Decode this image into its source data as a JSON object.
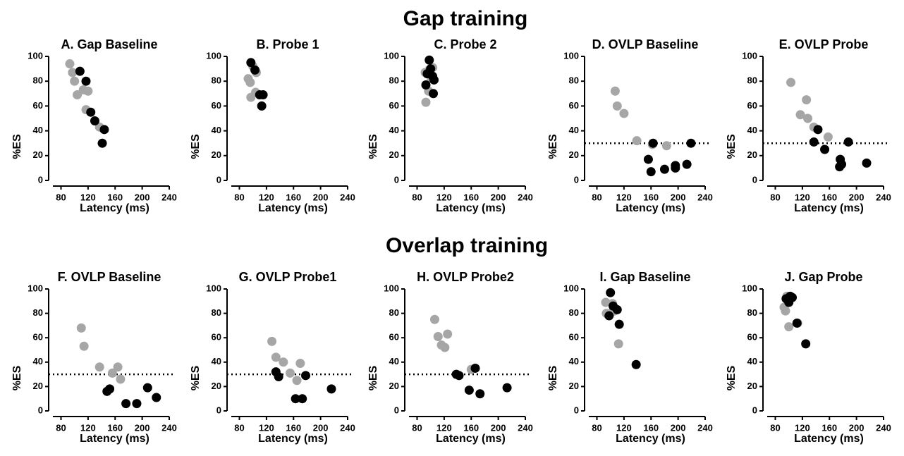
{
  "section_titles": [
    "Gap training",
    "Overlap training"
  ],
  "chart_data": [
    {
      "type": "scatter",
      "title": "A. Gap Baseline",
      "xlabel": "Latency (ms)",
      "ylabel": "%ES",
      "xlim": [
        68,
        240
      ],
      "xticks": [
        80,
        120,
        160,
        200,
        240
      ],
      "ylim": [
        0,
        100
      ],
      "yticks": [
        0,
        20,
        40,
        60,
        80,
        100
      ],
      "series": [
        {
          "color": "#a6a6a6",
          "x": [
            93,
            97,
            100,
            104,
            113,
            117,
            120,
            137
          ],
          "values": [
            94,
            87,
            80,
            69,
            73,
            57,
            72,
            43
          ]
        },
        {
          "color": "#000000",
          "x": [
            108,
            117,
            124,
            130,
            144,
            141
          ],
          "values": [
            88,
            80,
            55,
            48,
            41,
            30
          ]
        }
      ]
    },
    {
      "type": "scatter",
      "title": "B. Probe 1",
      "xlabel": "Latency (ms)",
      "ylabel": "%ES",
      "xlim": [
        68,
        240
      ],
      "xticks": [
        80,
        120,
        160,
        200,
        240
      ],
      "ylim": [
        0,
        100
      ],
      "yticks": [
        0,
        20,
        40,
        60,
        80,
        100
      ],
      "series": [
        {
          "color": "#a6a6a6",
          "x": [
            93,
            96,
            97,
            100,
            104,
            105
          ],
          "values": [
            82,
            79,
            67,
            92,
            71,
            87
          ]
        },
        {
          "color": "#000000",
          "x": [
            97,
            103,
            110,
            115,
            113
          ],
          "values": [
            95,
            89,
            69,
            69,
            60
          ]
        }
      ]
    },
    {
      "type": "scatter",
      "title": "C. Probe 2",
      "xlabel": "Latency (ms)",
      "ylabel": "%ES",
      "xlim": [
        68,
        240
      ],
      "xticks": [
        80,
        120,
        160,
        200,
        240
      ],
      "ylim": [
        0,
        100
      ],
      "yticks": [
        0,
        20,
        40,
        60,
        80,
        100
      ],
      "series": [
        {
          "color": "#a6a6a6",
          "x": [
            92,
            93,
            97,
            98,
            101,
            103
          ],
          "values": [
            87,
            63,
            72,
            89,
            82,
            91
          ]
        },
        {
          "color": "#000000",
          "x": [
            93,
            95,
            98,
            100,
            103,
            105,
            104
          ],
          "values": [
            77,
            86,
            97,
            90,
            84,
            81,
            70
          ]
        }
      ]
    },
    {
      "type": "scatter",
      "title": "D. OVLP Baseline",
      "xlabel": "Latency (ms)",
      "ylabel": "%ES",
      "xlim": [
        68,
        240
      ],
      "xticks": [
        80,
        120,
        160,
        200,
        240
      ],
      "ylim": [
        0,
        100
      ],
      "yticks": [
        0,
        20,
        40,
        60,
        80,
        100
      ],
      "threshold": 30,
      "series": [
        {
          "color": "#a6a6a6",
          "x": [
            107,
            110,
            120,
            139,
            162,
            183
          ],
          "values": [
            72,
            60,
            54,
            32,
            29,
            28
          ]
        },
        {
          "color": "#000000",
          "x": [
            156,
            160,
            163,
            180,
            196,
            196,
            213,
            219
          ],
          "values": [
            17,
            7,
            30,
            9,
            12,
            10,
            13,
            30
          ]
        }
      ]
    },
    {
      "type": "scatter",
      "title": "E. OVLP Probe",
      "xlabel": "Latency (ms)",
      "ylabel": "%ES",
      "xlim": [
        68,
        240
      ],
      "xticks": [
        80,
        120,
        160,
        200,
        240
      ],
      "ylim": [
        0,
        100
      ],
      "yticks": [
        0,
        20,
        40,
        60,
        80,
        100
      ],
      "threshold": 30,
      "series": [
        {
          "color": "#a6a6a6",
          "x": [
            103,
            117,
            126,
            128,
            137,
            158
          ],
          "values": [
            79,
            53,
            65,
            50,
            43,
            35
          ]
        },
        {
          "color": "#000000",
          "x": [
            137,
            143,
            153,
            175,
            176,
            178,
            188,
            215
          ],
          "values": [
            31,
            41,
            25,
            11,
            17,
            13,
            31,
            14
          ]
        }
      ]
    },
    {
      "type": "scatter",
      "title": "F. OVLP Baseline",
      "xlabel": "Latency (ms)",
      "ylabel": "%ES",
      "xlim": [
        68,
        240
      ],
      "xticks": [
        80,
        120,
        160,
        200,
        240
      ],
      "ylim": [
        0,
        100
      ],
      "yticks": [
        0,
        20,
        40,
        60,
        80,
        100
      ],
      "threshold": 30,
      "series": [
        {
          "color": "#a6a6a6",
          "x": [
            110,
            114,
            137,
            156,
            164,
            168
          ],
          "values": [
            68,
            53,
            36,
            31,
            36,
            26
          ]
        },
        {
          "color": "#000000",
          "x": [
            148,
            152,
            176,
            192,
            208,
            221
          ],
          "values": [
            16,
            18,
            6,
            6,
            19,
            11
          ]
        }
      ]
    },
    {
      "type": "scatter",
      "title": "G. OVLP Probe1",
      "xlabel": "Latency (ms)",
      "ylabel": "%ES",
      "xlim": [
        68,
        240
      ],
      "xticks": [
        80,
        120,
        160,
        200,
        240
      ],
      "ylim": [
        0,
        100
      ],
      "yticks": [
        0,
        20,
        40,
        60,
        80,
        100
      ],
      "threshold": 30,
      "series": [
        {
          "color": "#a6a6a6",
          "x": [
            128,
            134,
            145,
            155,
            165,
            170
          ],
          "values": [
            57,
            44,
            40,
            31,
            25,
            39
          ]
        },
        {
          "color": "#000000",
          "x": [
            134,
            138,
            163,
            173,
            178,
            216
          ],
          "values": [
            32,
            28,
            10,
            10,
            29,
            18
          ]
        }
      ]
    },
    {
      "type": "scatter",
      "title": "H. OVLP Probe2",
      "xlabel": "Latency (ms)",
      "ylabel": "%ES",
      "xlim": [
        68,
        240
      ],
      "xticks": [
        80,
        120,
        160,
        200,
        240
      ],
      "ylim": [
        0,
        100
      ],
      "yticks": [
        0,
        20,
        40,
        60,
        80,
        100
      ],
      "threshold": 30,
      "series": [
        {
          "color": "#a6a6a6",
          "x": [
            106,
            111,
            116,
            121,
            125,
            160
          ],
          "values": [
            75,
            61,
            54,
            52,
            63,
            34
          ]
        },
        {
          "color": "#000000",
          "x": [
            138,
            142,
            157,
            166,
            173,
            213
          ],
          "values": [
            30,
            29,
            17,
            35,
            14,
            19
          ]
        }
      ]
    },
    {
      "type": "scatter",
      "title": "I. Gap Baseline",
      "xlabel": "Latency (ms)",
      "ylabel": "%ES",
      "xlim": [
        68,
        240
      ],
      "xticks": [
        80,
        120,
        160,
        200,
        240
      ],
      "ylim": [
        0,
        100
      ],
      "yticks": [
        0,
        20,
        40,
        60,
        80,
        100
      ],
      "series": [
        {
          "color": "#a6a6a6",
          "x": [
            93,
            94,
            100,
            103,
            106,
            112
          ],
          "values": [
            89,
            80,
            80,
            88,
            82,
            55
          ]
        },
        {
          "color": "#000000",
          "x": [
            100,
            98,
            104,
            110,
            113,
            138
          ],
          "values": [
            97,
            78,
            86,
            83,
            71,
            38
          ]
        }
      ]
    },
    {
      "type": "scatter",
      "title": "J. Gap Probe",
      "xlabel": "Latency (ms)",
      "ylabel": "%ES",
      "xlim": [
        68,
        240
      ],
      "xticks": [
        80,
        120,
        160,
        200,
        240
      ],
      "ylim": [
        0,
        100
      ],
      "yticks": [
        0,
        20,
        40,
        60,
        80,
        100
      ],
      "series": [
        {
          "color": "#a6a6a6",
          "x": [
            93,
            95,
            97,
            100,
            113
          ],
          "values": [
            85,
            82,
            94,
            69,
            72
          ]
        },
        {
          "color": "#000000",
          "x": [
            96,
            100,
            102,
            105,
            112,
            125
          ],
          "values": [
            92,
            89,
            94,
            93,
            72,
            55
          ]
        }
      ]
    }
  ]
}
